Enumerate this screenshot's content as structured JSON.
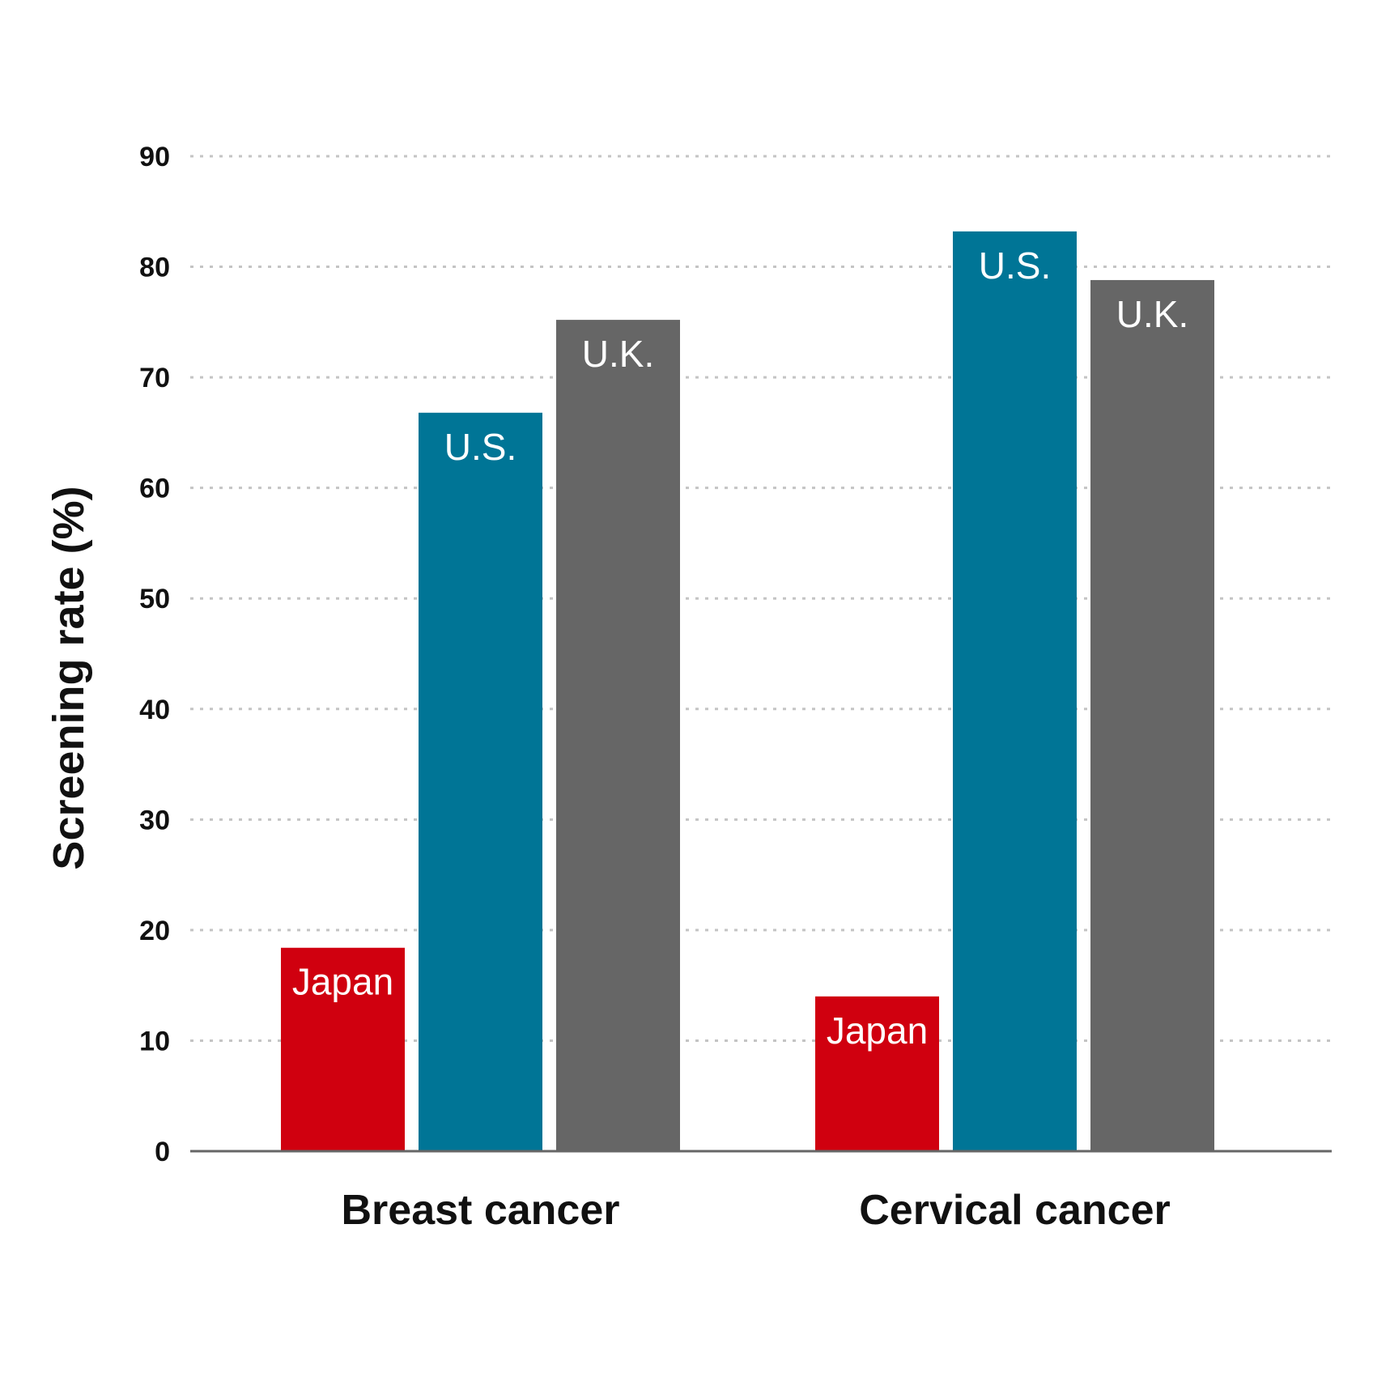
{
  "chart_data": {
    "type": "bar",
    "title": "",
    "ylabel": "Screening rate (%)",
    "xlabel": "",
    "ylim": [
      0,
      90
    ],
    "yticks": [
      0,
      10,
      20,
      30,
      40,
      50,
      60,
      70,
      80,
      90
    ],
    "grid": "horizontal dotted",
    "categories": [
      "Breast cancer",
      "Cervical cancer"
    ],
    "series": [
      {
        "name": "Japan",
        "color": "#d0000f",
        "values": [
          18.4,
          14.0
        ]
      },
      {
        "name": "U.S.",
        "color": "#007596",
        "values": [
          66.8,
          83.2
        ]
      },
      {
        "name": "U.K.",
        "color": "#666666",
        "values": [
          75.2,
          78.8
        ]
      }
    ]
  }
}
